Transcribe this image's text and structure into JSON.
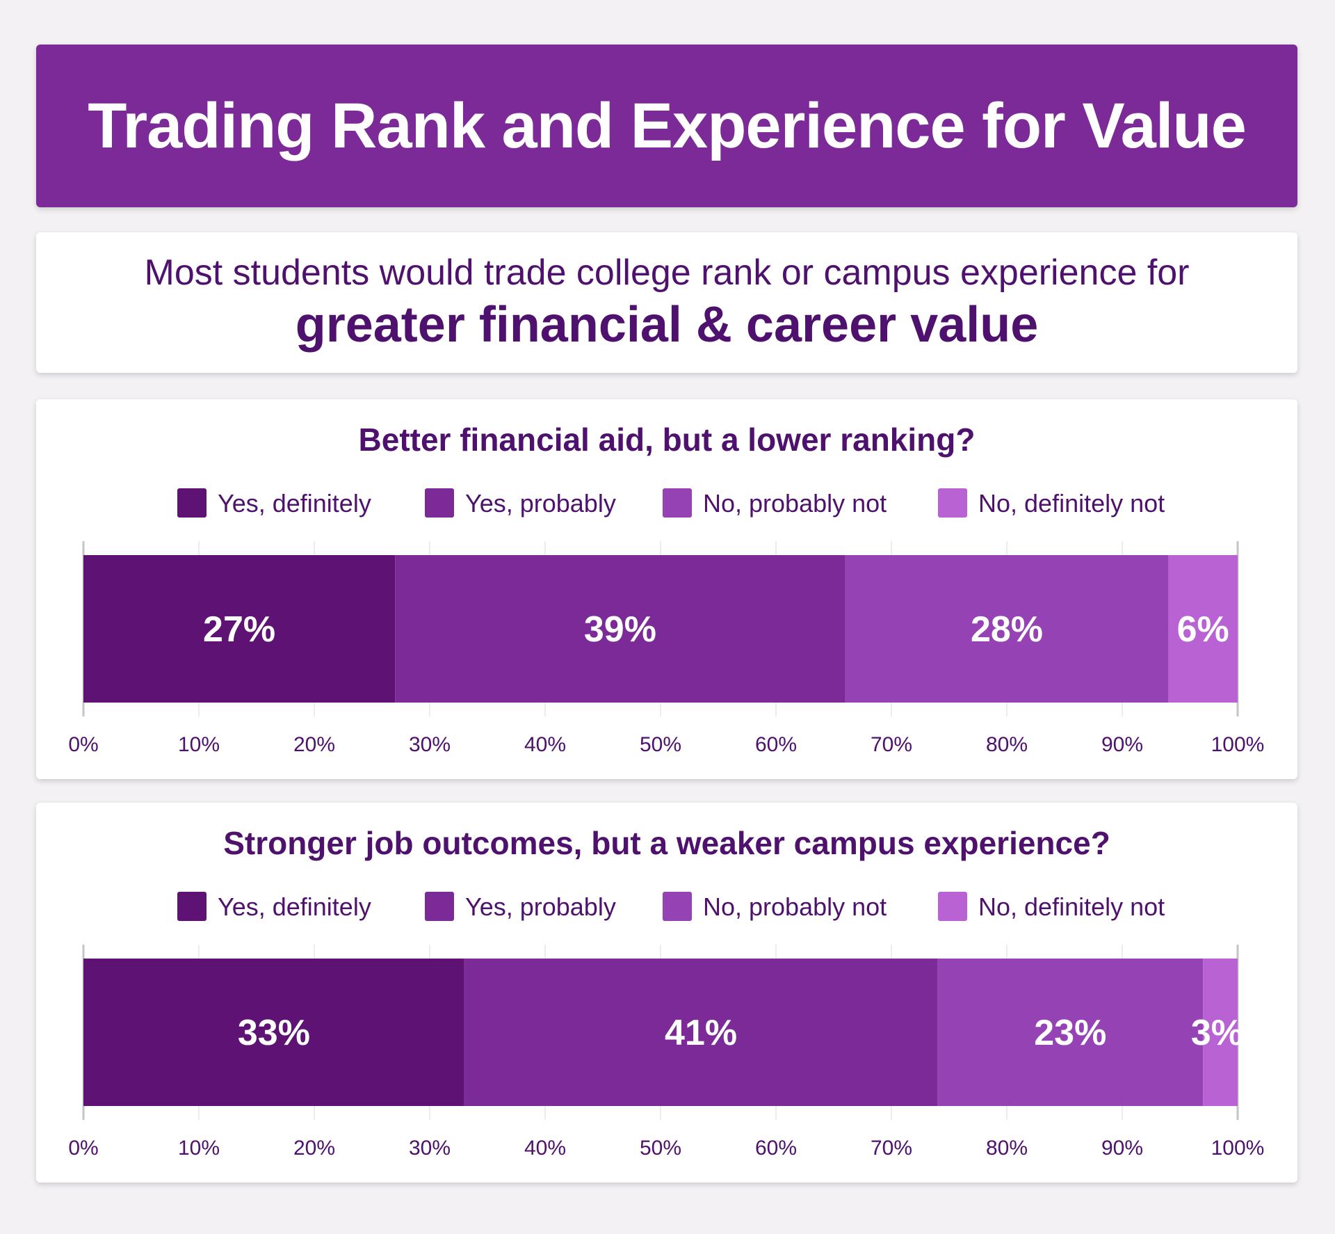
{
  "header": {
    "title": "Trading Rank and Experience for Value",
    "subtitle_line1": "Most students would trade college rank or campus experience for",
    "subtitle_line2": "greater financial & career value"
  },
  "colors": {
    "banner": "#7b2a97",
    "text": "#4f116e",
    "segments": [
      "#5e1274",
      "#7b2a97",
      "#9542b4",
      "#b862d4"
    ]
  },
  "chart_data": [
    {
      "type": "bar",
      "orientation": "horizontal-stacked",
      "title": "Better financial aid, but a lower ranking?",
      "legend": [
        "Yes, definitely",
        "Yes, probably",
        "No, probably not",
        "No, definitely not"
      ],
      "legend_position": "top",
      "values": [
        27,
        39,
        28,
        6
      ],
      "labels": [
        "27%",
        "39%",
        "28%",
        "6%"
      ],
      "xlim": [
        0,
        100
      ],
      "ticks": [
        "0%",
        "10%",
        "20%",
        "30%",
        "40%",
        "50%",
        "60%",
        "70%",
        "80%",
        "90%",
        "100%"
      ]
    },
    {
      "type": "bar",
      "orientation": "horizontal-stacked",
      "title": "Stronger job outcomes, but a weaker campus experience?",
      "legend": [
        "Yes, definitely",
        "Yes, probably",
        "No, probably not",
        "No, definitely not"
      ],
      "legend_position": "top",
      "values": [
        33,
        41,
        23,
        3
      ],
      "labels": [
        "33%",
        "41%",
        "23%",
        "3%"
      ],
      "xlim": [
        0,
        100
      ],
      "ticks": [
        "0%",
        "10%",
        "20%",
        "30%",
        "40%",
        "50%",
        "60%",
        "70%",
        "80%",
        "90%",
        "100%"
      ]
    }
  ]
}
